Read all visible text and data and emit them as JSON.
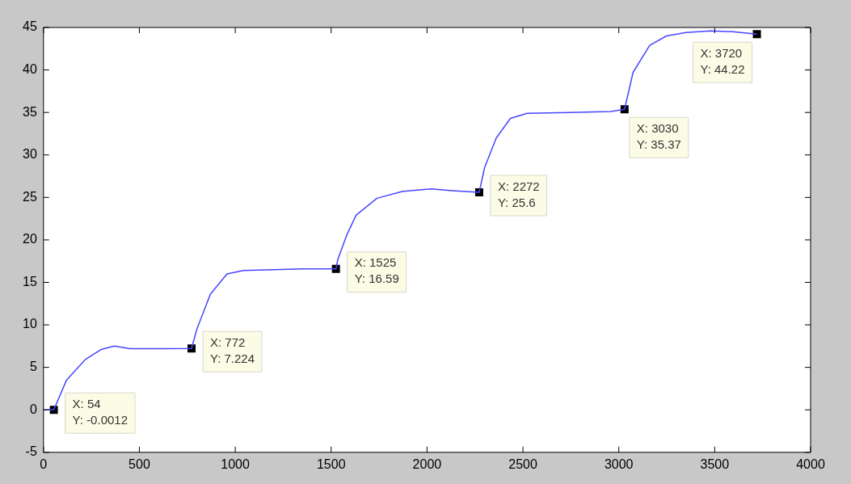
{
  "chart_data": {
    "type": "line",
    "series": [
      {
        "color": "#4646ff",
        "marker": "none",
        "x": [
          0,
          54,
          120,
          217,
          300,
          370,
          450,
          520,
          650,
          772,
          800,
          870,
          957,
          1043,
          1200,
          1350,
          1525,
          1535,
          1580,
          1630,
          1739,
          1870,
          2022,
          2130,
          2272,
          2300,
          2361,
          2435,
          2522,
          2739,
          2957,
          3030,
          3074,
          3161,
          3248,
          3350,
          3478,
          3596,
          3720
        ],
        "values": [
          0,
          0,
          3.5,
          5.9,
          7.1,
          7.5,
          7.2,
          7.2,
          7.2,
          7.224,
          9.5,
          13.6,
          16.0,
          16.4,
          16.5,
          16.6,
          16.59,
          17.7,
          20.5,
          22.9,
          24.9,
          25.7,
          26.0,
          25.8,
          25.6,
          28.5,
          32.0,
          34.3,
          34.9,
          35.0,
          35.1,
          35.37,
          39.7,
          42.9,
          44.0,
          44.4,
          44.6,
          44.5,
          44.22
        ]
      },
      {
        "type": "scatter",
        "color": "#000000",
        "marker": "square",
        "x": [
          54,
          772,
          1525,
          2272,
          3030,
          3720
        ],
        "values": [
          -0.0012,
          7.224,
          16.59,
          25.6,
          35.37,
          44.22
        ]
      }
    ],
    "xlim": [
      0,
      4000
    ],
    "xticks": [
      0,
      500,
      1000,
      1500,
      2000,
      2500,
      3000,
      3500,
      4000
    ],
    "ylim": [
      -5,
      45
    ],
    "yticks": [
      -5,
      0,
      5,
      10,
      15,
      20,
      25,
      30,
      35,
      40,
      45
    ],
    "grid": false,
    "legend": false,
    "annotations": [
      {
        "text": "X: 54\nY: -0.0012",
        "x": 54,
        "y": -0.0012
      },
      {
        "text": "X: 772\nY: 7.224",
        "x": 772,
        "y": 7.224
      },
      {
        "text": "X: 1525\nY: 16.59",
        "x": 1525,
        "y": 16.59
      },
      {
        "text": "X: 2272\nY: 25.6",
        "x": 2272,
        "y": 25.6
      },
      {
        "text": "X: 3030\nY: 35.37",
        "x": 3030,
        "y": 35.37
      },
      {
        "text": "X: 3720\nY: 44.22",
        "x": 3720,
        "y": 44.22
      }
    ]
  }
}
